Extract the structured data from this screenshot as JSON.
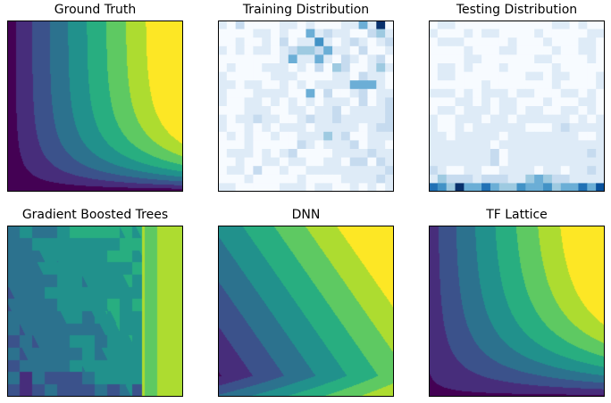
{
  "chart_data": [
    {
      "type": "heatmap",
      "title": "Ground Truth",
      "colormap": "viridis",
      "model": "ground_truth"
    },
    {
      "type": "heatmap",
      "title": "Training Distribution",
      "colormap": "Blues",
      "grid_max": 9,
      "grid": [
        [
          1,
          0,
          2,
          0,
          0,
          0,
          0,
          1,
          1,
          0,
          1,
          0,
          0,
          0,
          1,
          1,
          5,
          1,
          9,
          0
        ],
        [
          0,
          0,
          0,
          0,
          1,
          1,
          0,
          1,
          0,
          0,
          4,
          1,
          2,
          1,
          1,
          0,
          0,
          2,
          3,
          1
        ],
        [
          0,
          0,
          1,
          0,
          0,
          1,
          0,
          2,
          0,
          1,
          1,
          6,
          1,
          0,
          1,
          2,
          1,
          0,
          1,
          2
        ],
        [
          1,
          0,
          1,
          0,
          1,
          1,
          0,
          1,
          2,
          3,
          3,
          2,
          4,
          1,
          1,
          0,
          2,
          0,
          0,
          1
        ],
        [
          0,
          0,
          0,
          0,
          0,
          0,
          0,
          1,
          5,
          1,
          1,
          4,
          1,
          0,
          2,
          1,
          0,
          1,
          2,
          0
        ],
        [
          0,
          1,
          0,
          0,
          0,
          1,
          1,
          1,
          0,
          1,
          0,
          2,
          0,
          3,
          2,
          0,
          0,
          1,
          3,
          1
        ],
        [
          1,
          0,
          0,
          0,
          0,
          0,
          1,
          1,
          1,
          0,
          0,
          0,
          0,
          1,
          1,
          0,
          2,
          1,
          1,
          0
        ],
        [
          1,
          1,
          0,
          1,
          1,
          0,
          0,
          1,
          0,
          1,
          0,
          1,
          1,
          1,
          1,
          4,
          4,
          5,
          1,
          0
        ],
        [
          1,
          0,
          0,
          0,
          1,
          1,
          1,
          1,
          0,
          0,
          4,
          0,
          2,
          0,
          0,
          1,
          2,
          0,
          1,
          1
        ],
        [
          1,
          0,
          0,
          1,
          1,
          0,
          1,
          0,
          1,
          0,
          1,
          0,
          1,
          1,
          1,
          0,
          2,
          0,
          1,
          2
        ],
        [
          0,
          0,
          0,
          1,
          1,
          1,
          0,
          0,
          1,
          1,
          0,
          1,
          1,
          2,
          0,
          1,
          1,
          1,
          1,
          2
        ],
        [
          1,
          0,
          1,
          1,
          2,
          1,
          1,
          0,
          0,
          1,
          2,
          1,
          1,
          2,
          1,
          1,
          1,
          1,
          1,
          2
        ],
        [
          1,
          0,
          0,
          1,
          0,
          1,
          0,
          1,
          1,
          1,
          0,
          1,
          1,
          1,
          1,
          1,
          0,
          1,
          2,
          2
        ],
        [
          0,
          1,
          0,
          1,
          0,
          0,
          1,
          0,
          0,
          1,
          1,
          1,
          3,
          1,
          2,
          0,
          0,
          1,
          1,
          1
        ],
        [
          0,
          0,
          0,
          1,
          0,
          0,
          0,
          0,
          0,
          2,
          1,
          0,
          1,
          1,
          1,
          2,
          0,
          1,
          1,
          0
        ],
        [
          0,
          1,
          1,
          1,
          0,
          1,
          0,
          1,
          2,
          0,
          0,
          0,
          0,
          1,
          1,
          1,
          1,
          2,
          1,
          1
        ],
        [
          0,
          0,
          1,
          0,
          0,
          1,
          1,
          0,
          1,
          1,
          0,
          0,
          1,
          1,
          0,
          2,
          2,
          0,
          2,
          1
        ],
        [
          0,
          1,
          1,
          0,
          2,
          0,
          0,
          1,
          0,
          0,
          1,
          1,
          1,
          1,
          1,
          1,
          1,
          1,
          1,
          2
        ],
        [
          0,
          0,
          0,
          1,
          0,
          0,
          0,
          0,
          0,
          1,
          0,
          0,
          0,
          0,
          1,
          1,
          1,
          1,
          2,
          1
        ],
        [
          1,
          1,
          0,
          0,
          0,
          0,
          0,
          1,
          1,
          1,
          0,
          1,
          1,
          0,
          0,
          1,
          0,
          1,
          0,
          1
        ]
      ]
    },
    {
      "type": "heatmap",
      "title": "Testing Distribution",
      "colormap": "Blues",
      "grid_max": 9,
      "grid": [
        [
          0,
          1,
          1,
          0,
          0,
          0,
          0,
          0,
          0,
          0,
          0,
          0,
          0,
          0,
          1,
          1,
          0,
          1,
          0,
          0
        ],
        [
          1,
          0,
          0,
          0,
          1,
          0,
          1,
          1,
          0,
          0,
          0,
          0,
          1,
          0,
          0,
          0,
          0,
          0,
          1,
          1
        ],
        [
          0,
          1,
          1,
          1,
          0,
          0,
          0,
          0,
          0,
          1,
          0,
          0,
          0,
          1,
          0,
          0,
          0,
          1,
          1,
          0
        ],
        [
          0,
          0,
          0,
          0,
          1,
          0,
          0,
          0,
          1,
          1,
          0,
          0,
          0,
          0,
          1,
          0,
          0,
          1,
          1,
          0
        ],
        [
          0,
          0,
          0,
          0,
          1,
          1,
          0,
          0,
          0,
          0,
          0,
          0,
          1,
          1,
          0,
          0,
          0,
          0,
          1,
          0
        ],
        [
          0,
          1,
          1,
          0,
          1,
          0,
          0,
          0,
          1,
          0,
          0,
          0,
          0,
          0,
          1,
          0,
          0,
          0,
          0,
          0
        ],
        [
          0,
          1,
          1,
          0,
          0,
          0,
          0,
          0,
          0,
          0,
          0,
          1,
          1,
          0,
          1,
          1,
          0,
          0,
          0,
          1
        ],
        [
          0,
          0,
          0,
          0,
          0,
          0,
          1,
          0,
          0,
          0,
          0,
          0,
          0,
          0,
          1,
          0,
          0,
          0,
          0,
          1
        ],
        [
          1,
          1,
          1,
          0,
          1,
          0,
          1,
          1,
          1,
          0,
          1,
          1,
          0,
          0,
          0,
          1,
          1,
          0,
          1,
          0
        ],
        [
          0,
          0,
          0,
          1,
          1,
          0,
          1,
          0,
          1,
          1,
          0,
          0,
          0,
          1,
          0,
          0,
          0,
          1,
          1,
          0
        ],
        [
          0,
          1,
          1,
          0,
          1,
          1,
          1,
          0,
          1,
          1,
          0,
          1,
          1,
          0,
          0,
          1,
          1,
          0,
          1,
          0
        ],
        [
          1,
          0,
          0,
          1,
          1,
          1,
          0,
          1,
          1,
          0,
          1,
          1,
          1,
          1,
          1,
          1,
          0,
          1,
          0,
          1
        ],
        [
          1,
          0,
          0,
          1,
          0,
          1,
          1,
          1,
          1,
          1,
          1,
          0,
          0,
          0,
          1,
          2,
          1,
          1,
          1,
          1
        ],
        [
          1,
          1,
          0,
          1,
          1,
          1,
          1,
          1,
          0,
          1,
          1,
          1,
          1,
          1,
          1,
          1,
          1,
          0,
          0,
          1
        ],
        [
          1,
          1,
          1,
          1,
          1,
          1,
          1,
          0,
          1,
          1,
          1,
          1,
          1,
          1,
          1,
          1,
          1,
          1,
          1,
          1
        ],
        [
          1,
          1,
          1,
          1,
          1,
          1,
          1,
          2,
          0,
          1,
          1,
          1,
          1,
          1,
          1,
          1,
          1,
          1,
          2,
          1
        ],
        [
          1,
          1,
          1,
          1,
          1,
          1,
          1,
          2,
          0,
          1,
          1,
          1,
          1,
          1,
          1,
          1,
          1,
          1,
          1,
          1
        ],
        [
          2,
          1,
          0,
          0,
          1,
          1,
          0,
          0,
          1,
          1,
          1,
          1,
          0,
          1,
          1,
          0,
          1,
          1,
          2,
          1
        ],
        [
          1,
          3,
          2,
          2,
          2,
          1,
          2,
          2,
          2,
          1,
          1,
          3,
          4,
          3,
          2,
          2,
          1,
          1,
          1,
          1
        ],
        [
          7,
          6,
          3,
          9,
          5,
          4,
          7,
          4,
          3,
          3,
          6,
          5,
          5,
          6,
          3,
          4,
          4,
          7,
          4,
          8
        ]
      ]
    },
    {
      "type": "heatmap",
      "title": "Gradient Boosted Trees",
      "colormap": "viridis",
      "model": "gbt"
    },
    {
      "type": "heatmap",
      "title": "DNN",
      "colormap": "viridis",
      "model": "dnn"
    },
    {
      "type": "heatmap",
      "title": "TF Lattice",
      "colormap": "viridis",
      "model": "lattice"
    }
  ],
  "colors": {
    "viridis": [
      "#440154",
      "#472d7b",
      "#3b528b",
      "#2c728e",
      "#21918c",
      "#28ae80",
      "#5ec962",
      "#addc30",
      "#fde725"
    ],
    "blues": [
      "#f7fbff",
      "#deebf7",
      "#c6dbef",
      "#9ecae1",
      "#6baed6",
      "#4292c6",
      "#2171b5",
      "#08519c",
      "#08306b"
    ]
  }
}
